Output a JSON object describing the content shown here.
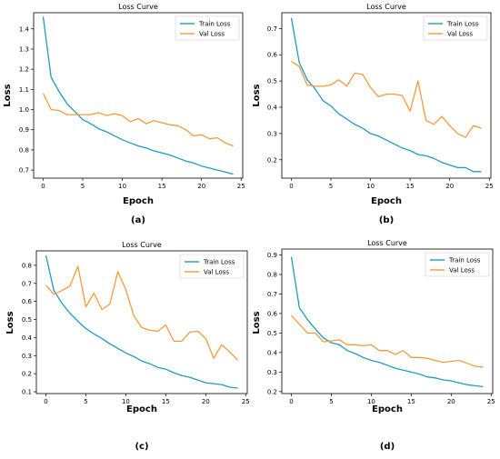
{
  "chart_data": [
    {
      "type": "line",
      "panel_label": "(a)",
      "title": "Loss Curve",
      "xlabel": "Epoch",
      "ylabel": "Loss",
      "xlim": [
        -1.2,
        25.2
      ],
      "ylim": [
        0.66,
        1.48
      ],
      "xticks": [
        0,
        5,
        10,
        15,
        20,
        25
      ],
      "yticks": [
        0.7,
        0.8,
        0.9,
        1.0,
        1.1,
        1.2,
        1.3,
        1.4
      ],
      "ytick_labels": [
        "0.7",
        "0.8",
        "0.9",
        "1.0",
        "1.1",
        "1.2",
        "1.3",
        "1.4"
      ],
      "legend_position": "top-right",
      "x": [
        0,
        1,
        2,
        3,
        4,
        5,
        6,
        7,
        8,
        9,
        10,
        11,
        12,
        13,
        14,
        15,
        16,
        17,
        18,
        19,
        20,
        21,
        22,
        23,
        24
      ],
      "series": [
        {
          "name": "Train Loss",
          "color": "#1f9bc4",
          "values": [
            1.46,
            1.16,
            1.09,
            1.03,
            0.99,
            0.95,
            0.93,
            0.905,
            0.89,
            0.87,
            0.85,
            0.835,
            0.82,
            0.81,
            0.795,
            0.785,
            0.775,
            0.76,
            0.745,
            0.735,
            0.72,
            0.71,
            0.7,
            0.69,
            0.68
          ]
        },
        {
          "name": "Val Loss",
          "color": "#f39c3c",
          "values": [
            1.08,
            1.0,
            0.995,
            0.975,
            0.975,
            0.975,
            0.975,
            0.985,
            0.97,
            0.98,
            0.97,
            0.94,
            0.955,
            0.93,
            0.945,
            0.935,
            0.925,
            0.92,
            0.9,
            0.87,
            0.875,
            0.855,
            0.86,
            0.835,
            0.82
          ]
        }
      ]
    },
    {
      "type": "line",
      "panel_label": "(b)",
      "title": "Loss Curve",
      "xlabel": "Epoch",
      "ylabel": "Loss",
      "xlim": [
        -1.2,
        25.2
      ],
      "ylim": [
        0.13,
        0.76
      ],
      "xticks": [
        0,
        5,
        10,
        15,
        20,
        25
      ],
      "yticks": [
        0.2,
        0.3,
        0.4,
        0.5,
        0.6,
        0.7
      ],
      "ytick_labels": [
        "0.2",
        "0.3",
        "0.4",
        "0.5",
        "0.6",
        "0.7"
      ],
      "legend_position": "top-right",
      "x": [
        0,
        1,
        2,
        3,
        4,
        5,
        6,
        7,
        8,
        9,
        10,
        11,
        12,
        13,
        14,
        15,
        16,
        17,
        18,
        19,
        20,
        21,
        22,
        23,
        24
      ],
      "series": [
        {
          "name": "Train Loss",
          "color": "#1f9bc4",
          "values": [
            0.74,
            0.57,
            0.505,
            0.47,
            0.425,
            0.405,
            0.375,
            0.355,
            0.335,
            0.32,
            0.3,
            0.29,
            0.275,
            0.26,
            0.245,
            0.235,
            0.22,
            0.215,
            0.205,
            0.19,
            0.18,
            0.17,
            0.17,
            0.155,
            0.155
          ]
        },
        {
          "name": "Val Loss",
          "color": "#f39c3c",
          "values": [
            0.575,
            0.555,
            0.485,
            0.48,
            0.48,
            0.485,
            0.505,
            0.48,
            0.53,
            0.525,
            0.475,
            0.44,
            0.45,
            0.45,
            0.445,
            0.385,
            0.5,
            0.35,
            0.335,
            0.365,
            0.33,
            0.3,
            0.285,
            0.33,
            0.32
          ]
        }
      ]
    },
    {
      "type": "line",
      "panel_label": "(c)",
      "title": "Loss Curve",
      "xlabel": "Epoch",
      "ylabel": "Loss",
      "xlim": [
        -1.2,
        25.2
      ],
      "ylim": [
        0.09,
        0.88
      ],
      "xticks": [
        0,
        5,
        10,
        15,
        20,
        25
      ],
      "yticks": [
        0.1,
        0.2,
        0.3,
        0.4,
        0.5,
        0.6,
        0.7,
        0.8
      ],
      "ytick_labels": [
        "0.1",
        "0.2",
        "0.3",
        "0.4",
        "0.5",
        "0.6",
        "0.7",
        "0.8"
      ],
      "legend_position": "top-right",
      "x": [
        0,
        1,
        2,
        3,
        4,
        5,
        6,
        7,
        8,
        9,
        10,
        11,
        12,
        13,
        14,
        15,
        16,
        17,
        18,
        19,
        20,
        21,
        22,
        23,
        24
      ],
      "series": [
        {
          "name": "Train Loss",
          "color": "#1f9bc4",
          "values": [
            0.855,
            0.66,
            0.59,
            0.535,
            0.49,
            0.45,
            0.42,
            0.395,
            0.365,
            0.34,
            0.315,
            0.295,
            0.27,
            0.255,
            0.235,
            0.225,
            0.205,
            0.19,
            0.18,
            0.165,
            0.15,
            0.145,
            0.14,
            0.125,
            0.12
          ]
        },
        {
          "name": "Val Loss",
          "color": "#f39c3c",
          "values": [
            0.69,
            0.64,
            0.66,
            0.685,
            0.795,
            0.57,
            0.645,
            0.555,
            0.585,
            0.765,
            0.665,
            0.52,
            0.455,
            0.44,
            0.435,
            0.47,
            0.38,
            0.38,
            0.43,
            0.435,
            0.395,
            0.285,
            0.36,
            0.32,
            0.275
          ]
        }
      ]
    },
    {
      "type": "line",
      "panel_label": "(d)",
      "title": "Loss Curve",
      "xlabel": "Epoch",
      "ylabel": "Loss",
      "xlim": [
        -1.2,
        25.2
      ],
      "ylim": [
        0.19,
        0.93
      ],
      "xticks": [
        0,
        5,
        10,
        15,
        20,
        25
      ],
      "yticks": [
        0.2,
        0.3,
        0.4,
        0.5,
        0.6,
        0.7,
        0.8,
        0.9
      ],
      "ytick_labels": [
        "0.2",
        "0.3",
        "0.4",
        "0.5",
        "0.6",
        "0.7",
        "0.8",
        "0.9"
      ],
      "legend_position": "top-right",
      "x": [
        0,
        1,
        2,
        3,
        4,
        5,
        6,
        7,
        8,
        9,
        10,
        11,
        12,
        13,
        14,
        15,
        16,
        17,
        18,
        19,
        20,
        21,
        22,
        23,
        24
      ],
      "series": [
        {
          "name": "Train Loss",
          "color": "#1f9bc4",
          "values": [
            0.89,
            0.63,
            0.57,
            0.52,
            0.475,
            0.45,
            0.44,
            0.41,
            0.395,
            0.375,
            0.36,
            0.35,
            0.335,
            0.32,
            0.31,
            0.3,
            0.29,
            0.275,
            0.27,
            0.26,
            0.255,
            0.245,
            0.235,
            0.23,
            0.225
          ]
        },
        {
          "name": "Val Loss",
          "color": "#f39c3c",
          "values": [
            0.59,
            0.545,
            0.5,
            0.5,
            0.455,
            0.46,
            0.465,
            0.44,
            0.44,
            0.435,
            0.44,
            0.41,
            0.41,
            0.39,
            0.41,
            0.375,
            0.375,
            0.37,
            0.36,
            0.35,
            0.355,
            0.36,
            0.345,
            0.33,
            0.325
          ]
        }
      ]
    }
  ]
}
